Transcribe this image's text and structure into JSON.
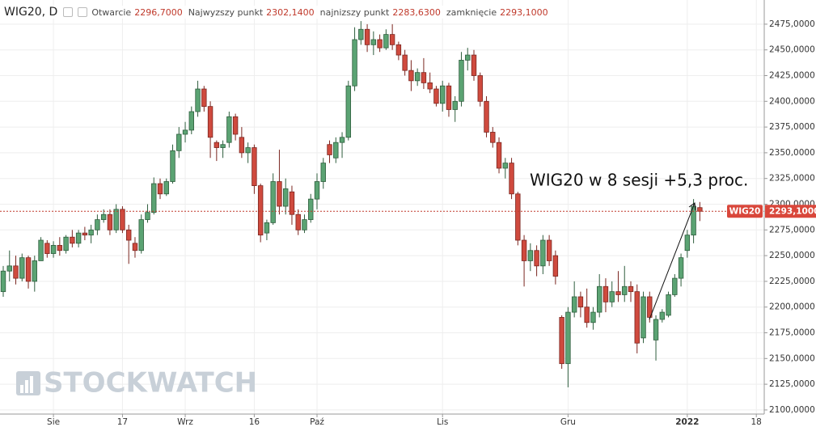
{
  "chart_data": {
    "type": "candlestick",
    "title": "WIG20, D",
    "stats": [
      {
        "label": "Otwarcie",
        "value": "2296,7000"
      },
      {
        "label": "Najwyzszy punkt",
        "value": "2302,1400"
      },
      {
        "label": "najnizszy punkt",
        "value": "2283,6300"
      },
      {
        "label": "zamknięcie",
        "value": "2293,1000"
      }
    ],
    "annotation": "WIG20 w 8 sesji +5,3 proc.",
    "watermark": "STOCKWATCH",
    "price_badge": {
      "name": "WIG20",
      "value_label": "2293,1000"
    },
    "up_color": "#5ba373",
    "down_color": "#cf4a3e",
    "grid": true,
    "categories": [
      null,
      null,
      null,
      null,
      null,
      null,
      null,
      null,
      "Sie",
      null,
      null,
      null,
      null,
      null,
      null,
      null,
      null,
      null,
      null,
      "17",
      null,
      null,
      null,
      null,
      null,
      null,
      null,
      null,
      null,
      "Wrz",
      null,
      null,
      null,
      null,
      null,
      null,
      null,
      null,
      null,
      null,
      "16",
      null,
      null,
      null,
      null,
      null,
      null,
      null,
      null,
      null,
      "Paź",
      null,
      null,
      null,
      null,
      null,
      null,
      null,
      null,
      null,
      null,
      null,
      null,
      null,
      null,
      null,
      null,
      null,
      null,
      null,
      "Lis",
      null,
      null,
      null,
      null,
      null,
      null,
      null,
      null,
      null,
      null,
      null,
      null,
      null,
      null,
      null,
      null,
      null,
      null,
      null,
      "Gru",
      null,
      null,
      null,
      null,
      null,
      null,
      null,
      null,
      null,
      null,
      null,
      null,
      null,
      null,
      null,
      null,
      null,
      null,
      "2022",
      null,
      null,
      null,
      null,
      null,
      null,
      null,
      null,
      null,
      null,
      "18"
    ],
    "open": [
      2215,
      2235,
      2240,
      2228,
      2248,
      2225,
      2245,
      2262,
      2252,
      2260,
      2255,
      2268,
      2262,
      2272,
      2270,
      2275,
      2285,
      2290,
      2275,
      2295,
      2275,
      2262,
      2255,
      2285,
      2292,
      2320,
      2310,
      2322,
      2352,
      2368,
      2372,
      2390,
      2412,
      2395,
      2360,
      2355,
      2360,
      2385,
      2365,
      2350,
      2355,
      2318,
      2272,
      2282,
      2322,
      2298,
      2312,
      2290,
      2275,
      2285,
      2305,
      2322,
      2358,
      2345,
      2360,
      2365,
      2415,
      2460,
      2470,
      2455,
      2460,
      2452,
      2465,
      2455,
      2445,
      2430,
      2420,
      2428,
      2418,
      2412,
      2398,
      2415,
      2392,
      2400,
      2440,
      2445,
      2425,
      2400,
      2370,
      2360,
      2335,
      2340,
      2310,
      2265,
      2245,
      2255,
      2240,
      2265,
      2250,
      2190,
      2145,
      2195,
      2210,
      2200,
      2185,
      2195,
      2220,
      2205,
      2215,
      2212,
      2220,
      2215,
      2170,
      2210,
      2168,
      2188,
      2192,
      2212,
      2228,
      2255,
      2270,
      2296.7,
      null,
      null,
      null,
      null,
      null,
      null,
      null,
      null,
      null
    ],
    "high": [
      2240,
      2255,
      2250,
      2252,
      2250,
      2250,
      2268,
      2265,
      2264,
      2268,
      2270,
      2275,
      2275,
      2278,
      2280,
      2290,
      2295,
      2295,
      2300,
      2298,
      2280,
      2268,
      2290,
      2300,
      2326,
      2325,
      2325,
      2358,
      2375,
      2380,
      2395,
      2420,
      2415,
      2400,
      2362,
      2362,
      2390,
      2388,
      2375,
      2360,
      2358,
      2320,
      2285,
      2330,
      2353,
      2325,
      2318,
      2295,
      2290,
      2310,
      2330,
      2345,
      2362,
      2365,
      2370,
      2420,
      2472,
      2478,
      2475,
      2468,
      2465,
      2470,
      2475,
      2458,
      2450,
      2440,
      2432,
      2442,
      2428,
      2415,
      2420,
      2418,
      2405,
      2448,
      2452,
      2450,
      2428,
      2405,
      2375,
      2365,
      2345,
      2345,
      2312,
      2270,
      2262,
      2260,
      2270,
      2270,
      2255,
      2192,
      2200,
      2225,
      2215,
      2218,
      2200,
      2232,
      2228,
      2225,
      2235,
      2240,
      2225,
      2222,
      2215,
      2215,
      2192,
      2198,
      2215,
      2232,
      2252,
      2275,
      2305,
      2302.14,
      null,
      null,
      null,
      null,
      null,
      null,
      null,
      null,
      null
    ],
    "low": [
      2210,
      2225,
      2222,
      2225,
      2218,
      2215,
      2245,
      2248,
      2248,
      2250,
      2252,
      2258,
      2258,
      2265,
      2262,
      2270,
      2282,
      2270,
      2272,
      2272,
      2242,
      2248,
      2252,
      2282,
      2290,
      2305,
      2308,
      2320,
      2345,
      2360,
      2368,
      2385,
      2390,
      2345,
      2342,
      2345,
      2355,
      2362,
      2345,
      2340,
      2310,
      2263,
      2265,
      2280,
      2290,
      2290,
      2280,
      2270,
      2272,
      2282,
      2295,
      2315,
      2340,
      2340,
      2345,
      2362,
      2410,
      2455,
      2448,
      2445,
      2448,
      2450,
      2450,
      2440,
      2425,
      2410,
      2415,
      2412,
      2408,
      2395,
      2390,
      2385,
      2380,
      2395,
      2430,
      2420,
      2395,
      2365,
      2355,
      2330,
      2325,
      2305,
      2260,
      2220,
      2235,
      2230,
      2232,
      2240,
      2222,
      2140,
      2122,
      2190,
      2190,
      2180,
      2178,
      2190,
      2195,
      2200,
      2205,
      2205,
      2205,
      2155,
      2165,
      2185,
      2148,
      2185,
      2190,
      2210,
      2220,
      2248,
      2262,
      2283.63,
      null,
      null,
      null,
      null,
      null,
      null,
      null,
      null,
      null
    ],
    "close": [
      2235,
      2240,
      2228,
      2248,
      2225,
      2245,
      2265,
      2252,
      2260,
      2255,
      2268,
      2262,
      2272,
      2270,
      2275,
      2285,
      2290,
      2275,
      2295,
      2275,
      2265,
      2255,
      2285,
      2292,
      2320,
      2310,
      2322,
      2352,
      2368,
      2372,
      2390,
      2412,
      2395,
      2365,
      2355,
      2358,
      2385,
      2368,
      2350,
      2355,
      2318,
      2270,
      2282,
      2322,
      2298,
      2315,
      2290,
      2275,
      2285,
      2305,
      2322,
      2340,
      2348,
      2360,
      2365,
      2415,
      2460,
      2470,
      2455,
      2460,
      2452,
      2465,
      2455,
      2445,
      2430,
      2420,
      2428,
      2418,
      2412,
      2398,
      2415,
      2392,
      2400,
      2440,
      2445,
      2425,
      2400,
      2370,
      2360,
      2335,
      2340,
      2310,
      2265,
      2245,
      2255,
      2240,
      2265,
      2245,
      2230,
      2145,
      2195,
      2210,
      2200,
      2185,
      2195,
      2220,
      2205,
      2215,
      2212,
      2220,
      2215,
      2165,
      2210,
      2190,
      2188,
      2195,
      2212,
      2228,
      2248,
      2270,
      2298,
      2293.1,
      null,
      null,
      null,
      null,
      null,
      null,
      null,
      null,
      null
    ],
    "ylim": [
      2096,
      2498.5
    ],
    "yticks": [
      {
        "value": 2100,
        "label": "2100,0000"
      },
      {
        "value": 2125,
        "label": "2125,0000"
      },
      {
        "value": 2150,
        "label": "2150,0000"
      },
      {
        "value": 2175,
        "label": "2175,0000"
      },
      {
        "value": 2200,
        "label": "2200,0000"
      },
      {
        "value": 2225,
        "label": "2225,0000"
      },
      {
        "value": 2250,
        "label": "2250,0000"
      },
      {
        "value": 2275,
        "label": "2275,0000"
      },
      {
        "value": 2300,
        "label": "2300,0000"
      },
      {
        "value": 2325,
        "label": "2325,0000"
      },
      {
        "value": 2350,
        "label": "2350,0000"
      },
      {
        "value": 2375,
        "label": "2375,0000"
      },
      {
        "value": 2400,
        "label": "2400,0000"
      },
      {
        "value": 2425,
        "label": "2425,0000"
      },
      {
        "value": 2450,
        "label": "2450,0000"
      },
      {
        "value": 2475,
        "label": "2475,0000"
      }
    ]
  }
}
